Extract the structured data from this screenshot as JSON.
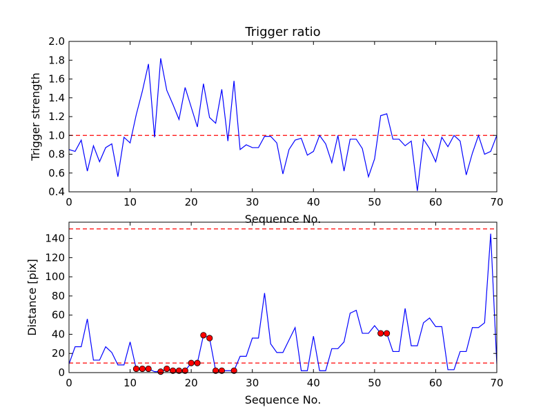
{
  "chart_data": [
    {
      "type": "line",
      "title": "Trigger ratio",
      "xlabel": "Sequence No.",
      "ylabel": "Trigger strength",
      "xlim": [
        0,
        70
      ],
      "ylim": [
        0.4,
        2.0
      ],
      "xticks": [
        "0",
        "10",
        "20",
        "30",
        "40",
        "50",
        "60",
        "70"
      ],
      "yticks": [
        "0.4",
        "0.6",
        "0.8",
        "1.0",
        "1.2",
        "1.4",
        "1.6",
        "1.8",
        "2.0"
      ],
      "line_color": "#0000ff",
      "ref_color": "#ff0000",
      "reference_lines": [
        1.0
      ],
      "x": [
        0,
        1,
        2,
        3,
        4,
        5,
        6,
        7,
        8,
        9,
        10,
        11,
        12,
        13,
        14,
        15,
        16,
        17,
        18,
        19,
        20,
        21,
        22,
        23,
        24,
        25,
        26,
        27,
        28,
        29,
        30,
        31,
        32,
        33,
        34,
        35,
        36,
        37,
        38,
        39,
        40,
        41,
        42,
        43,
        44,
        45,
        46,
        47,
        48,
        49,
        50,
        51,
        52,
        53,
        54,
        55,
        56,
        57,
        58,
        59,
        60,
        61,
        62,
        63,
        64,
        65,
        66,
        67,
        68,
        69,
        70
      ],
      "values": [
        0.85,
        0.83,
        0.95,
        0.62,
        0.89,
        0.72,
        0.87,
        0.91,
        0.56,
        0.98,
        0.92,
        1.22,
        1.47,
        1.76,
        0.98,
        1.82,
        1.48,
        1.33,
        1.17,
        1.51,
        1.3,
        1.09,
        1.55,
        1.19,
        1.13,
        1.49,
        0.94,
        1.58,
        0.85,
        0.9,
        0.87,
        0.87,
        0.99,
        0.99,
        0.92,
        0.59,
        0.85,
        0.95,
        0.97,
        0.79,
        0.83,
        1.0,
        0.91,
        0.71,
        1.0,
        0.62,
        0.96,
        0.96,
        0.86,
        0.56,
        0.75,
        1.21,
        1.23,
        0.96,
        0.96,
        0.89,
        0.94,
        0.41,
        0.96,
        0.86,
        0.72,
        0.98,
        0.88,
        1.0,
        0.94,
        0.58,
        0.81,
        1.0,
        0.8,
        0.83,
        1.0
      ]
    },
    {
      "type": "line",
      "title": "",
      "xlabel": "Sequence No.",
      "ylabel": "Distance [pix]",
      "xlim": [
        0,
        70
      ],
      "ylim": [
        0,
        157
      ],
      "xticks": [
        "0",
        "10",
        "20",
        "30",
        "40",
        "50",
        "60",
        "70"
      ],
      "yticks": [
        "0",
        "20",
        "40",
        "60",
        "80",
        "100",
        "120",
        "140"
      ],
      "line_color": "#0000ff",
      "ref_color": "#ff0000",
      "marker_color": "#ff0000",
      "reference_lines": [
        10,
        150
      ],
      "x": [
        0,
        1,
        2,
        3,
        4,
        5,
        6,
        7,
        8,
        9,
        10,
        11,
        12,
        13,
        14,
        15,
        16,
        17,
        18,
        19,
        20,
        21,
        22,
        23,
        24,
        25,
        26,
        27,
        28,
        29,
        30,
        31,
        32,
        33,
        34,
        35,
        36,
        37,
        38,
        39,
        40,
        41,
        42,
        43,
        44,
        45,
        46,
        47,
        48,
        49,
        50,
        51,
        52,
        53,
        54,
        55,
        56,
        57,
        58,
        59,
        60,
        61,
        62,
        63,
        64,
        65,
        66,
        67,
        68,
        69,
        70
      ],
      "values": [
        9,
        27,
        27,
        56,
        13,
        13,
        27,
        21,
        8,
        8,
        32,
        4,
        4,
        4,
        1,
        1,
        4,
        2,
        2,
        2,
        10,
        10,
        39,
        36,
        2,
        2,
        2,
        2,
        17,
        17,
        36,
        36,
        83,
        30,
        21,
        21,
        34,
        47,
        2,
        2,
        38,
        2,
        2,
        25,
        25,
        32,
        62,
        65,
        41,
        41,
        49,
        41,
        41,
        22,
        22,
        67,
        28,
        28,
        52,
        57,
        48,
        48,
        3,
        3,
        22,
        22,
        47,
        47,
        52,
        145,
        9
      ],
      "highlighted_points": [
        {
          "x": 11,
          "y": 4
        },
        {
          "x": 12,
          "y": 4
        },
        {
          "x": 13,
          "y": 4
        },
        {
          "x": 15,
          "y": 1
        },
        {
          "x": 16,
          "y": 4
        },
        {
          "x": 17,
          "y": 2
        },
        {
          "x": 18,
          "y": 2
        },
        {
          "x": 19,
          "y": 2
        },
        {
          "x": 20,
          "y": 10
        },
        {
          "x": 21,
          "y": 10
        },
        {
          "x": 22,
          "y": 39
        },
        {
          "x": 23,
          "y": 36
        },
        {
          "x": 24,
          "y": 2
        },
        {
          "x": 25,
          "y": 2
        },
        {
          "x": 27,
          "y": 2
        },
        {
          "x": 51,
          "y": 41
        },
        {
          "x": 52,
          "y": 41
        }
      ]
    }
  ]
}
